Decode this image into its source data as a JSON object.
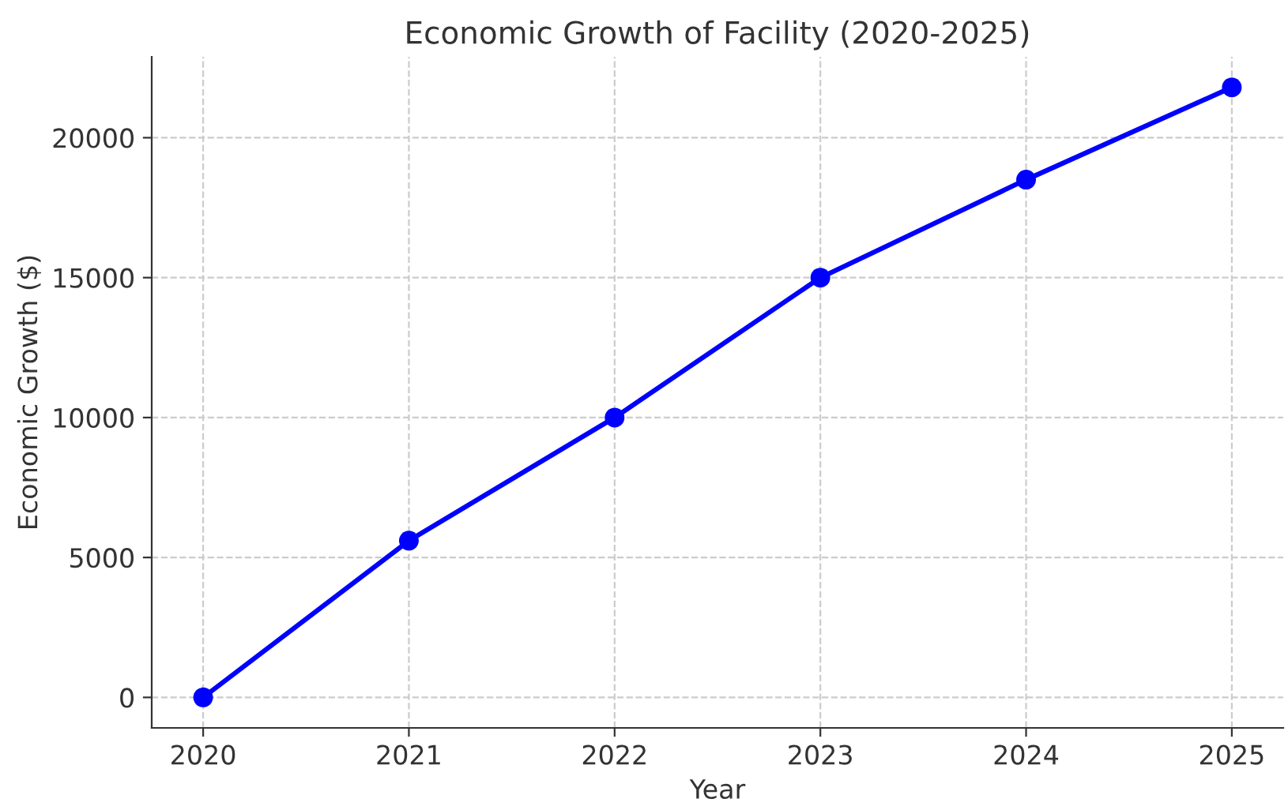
{
  "chart_data": {
    "type": "line",
    "title": "Economic Growth of Facility (2020-2025)",
    "xlabel": "Year",
    "ylabel": "Economic Growth ($)",
    "x": [
      2020,
      2021,
      2022,
      2023,
      2024,
      2025
    ],
    "series": [
      {
        "color": "#0000ff",
        "values": [
          0,
          5600,
          10000,
          15000,
          18500,
          21800
        ]
      }
    ],
    "xlim": [
      2019.75,
      2025.25
    ],
    "xticks": [
      2020,
      2021,
      2022,
      2023,
      2024,
      2025
    ],
    "ylim": [
      -1090,
      22890
    ],
    "yticks": [
      0,
      5000,
      10000,
      15000,
      20000
    ],
    "grid": true,
    "marker": "circle",
    "line_style": "solid"
  }
}
